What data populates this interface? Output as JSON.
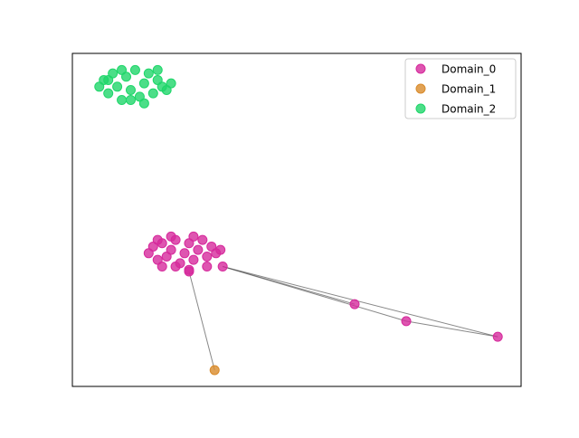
{
  "chart_data": {
    "type": "network",
    "legend": "upper right",
    "xlim": [
      0,
      1
    ],
    "ylim": [
      0,
      1
    ],
    "series": [
      {
        "name": "Domain_0",
        "color": "#d62a9c",
        "x": [
          0.17,
          0.18,
          0.19,
          0.2,
          0.21,
          0.22,
          0.23,
          0.24,
          0.25,
          0.26,
          0.27,
          0.28,
          0.29,
          0.3,
          0.31,
          0.32,
          0.23,
          0.27,
          0.2,
          0.3,
          0.33,
          0.19,
          0.26,
          0.22,
          0.26,
          0.335,
          0.629,
          0.744,
          0.948
        ],
        "y": [
          0.4,
          0.42,
          0.38,
          0.43,
          0.39,
          0.41,
          0.44,
          0.37,
          0.4,
          0.43,
          0.38,
          0.41,
          0.44,
          0.39,
          0.42,
          0.4,
          0.36,
          0.45,
          0.36,
          0.36,
          0.41,
          0.44,
          0.35,
          0.45,
          0.345,
          0.36,
          0.247,
          0.196,
          0.149
        ]
      },
      {
        "name": "Domain_1",
        "color": "#d98b2b",
        "x": [
          0.317
        ],
        "y": [
          0.049
        ]
      },
      {
        "name": "Domain_2",
        "color": "#1fd66a",
        "x": [
          0.06,
          0.07,
          0.08,
          0.09,
          0.1,
          0.11,
          0.12,
          0.13,
          0.14,
          0.15,
          0.16,
          0.17,
          0.18,
          0.19,
          0.2,
          0.21,
          0.22,
          0.11,
          0.16,
          0.13,
          0.08,
          0.19
        ],
        "y": [
          0.9,
          0.92,
          0.88,
          0.94,
          0.9,
          0.86,
          0.93,
          0.89,
          0.95,
          0.87,
          0.91,
          0.94,
          0.88,
          0.92,
          0.9,
          0.89,
          0.91,
          0.95,
          0.85,
          0.86,
          0.92,
          0.95
        ]
      }
    ],
    "edges": [
      [
        0,
        24,
        1,
        0
      ],
      [
        0,
        25,
        0,
        26
      ],
      [
        0,
        25,
        0,
        27
      ],
      [
        0,
        25,
        0,
        28
      ],
      [
        0,
        27,
        0,
        28
      ]
    ]
  }
}
